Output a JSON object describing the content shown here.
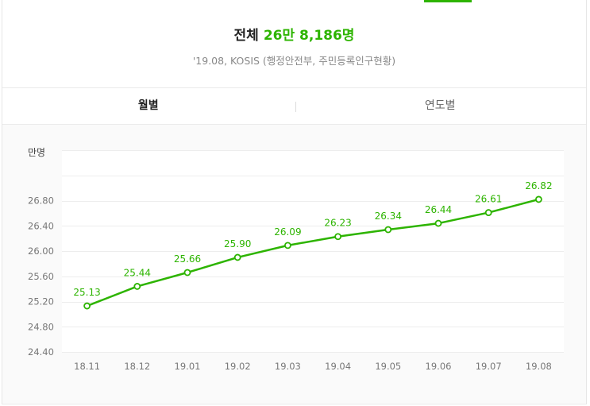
{
  "header": {
    "label": "전체",
    "total": "26만 8,186명",
    "source": "'19.08, KOSIS (행정안전부, 주민등록인구현황)"
  },
  "tabs": [
    {
      "label": "월별",
      "active": true
    },
    {
      "label": "연도별",
      "active": false
    }
  ],
  "colors": {
    "accent": "#2db400",
    "line": "#2db400",
    "text": "#222222",
    "muted": "#888888"
  },
  "chart_data": {
    "type": "line",
    "unit": "만명",
    "categories": [
      "18.11",
      "18.12",
      "19.01",
      "19.02",
      "19.03",
      "19.04",
      "19.05",
      "19.06",
      "19.07",
      "19.08"
    ],
    "series": [
      {
        "values": [
          25.13,
          25.44,
          25.66,
          25.9,
          26.09,
          26.23,
          26.34,
          26.44,
          26.61,
          26.82
        ],
        "labels": [
          "25.13",
          "25.44",
          "25.66",
          "25.90",
          "26.09",
          "26.23",
          "26.34",
          "26.44",
          "26.61",
          "26.82"
        ]
      }
    ],
    "yticks": [
      "24.40",
      "24.80",
      "25.20",
      "25.60",
      "26.00",
      "26.40",
      "26.80"
    ],
    "ylim": [
      24.4,
      27.6
    ],
    "grid": true
  }
}
